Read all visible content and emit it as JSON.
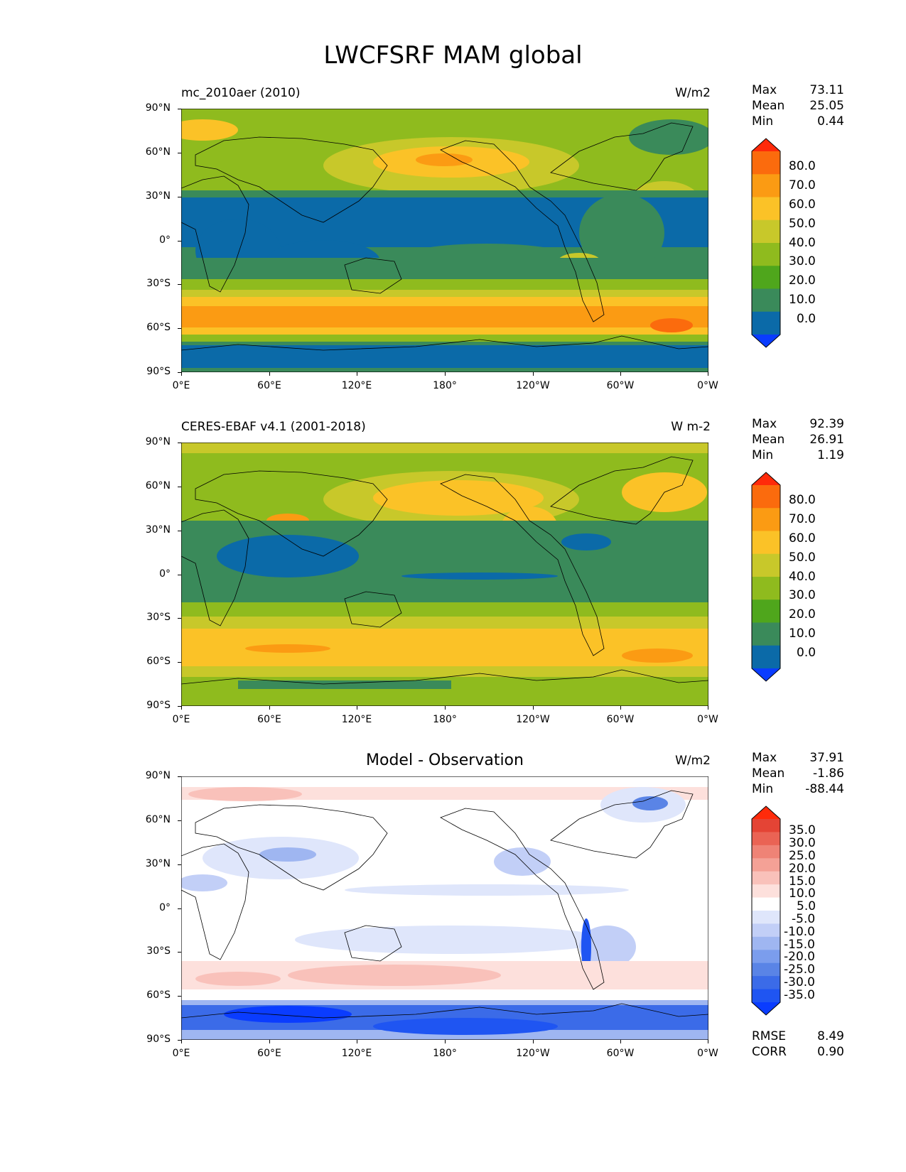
{
  "figure": {
    "title": "LWCFSRF MAM global"
  },
  "axes": {
    "lat_ticks": [
      "90°N",
      "60°N",
      "30°N",
      "0°",
      "30°S",
      "60°S",
      "90°S"
    ],
    "lon_ticks": [
      "0°E",
      "60°E",
      "120°E",
      "180°",
      "120°W",
      "60°W",
      "0°W"
    ]
  },
  "colors": {
    "sequential": [
      "#0a3cff",
      "#0b6aa8",
      "#3a8a5a",
      "#4fa61c",
      "#8fbb1e",
      "#c8c82a",
      "#fbc227",
      "#fb9b13",
      "#fb6b0d",
      "#ff2a0a"
    ],
    "diverging": [
      "#0a3cff",
      "#1f55f2",
      "#3b6be8",
      "#5a84e6",
      "#7b9ded",
      "#9fb6f1",
      "#c2cff7",
      "#dfe6fb",
      "#ffffff",
      "#fde0dc",
      "#f9c1ba",
      "#f4a196",
      "#ef8376",
      "#ea6354",
      "#e44435",
      "#ff2a0a"
    ]
  },
  "panels": [
    {
      "left_title": "mc_2010aer (2010)",
      "units": "W/m2",
      "stats": {
        "max_label": "Max",
        "max": "73.11",
        "mean_label": "Mean",
        "mean": "25.05",
        "min_label": "Min",
        "min": "0.44"
      },
      "colorbar": {
        "levels": [
          "80.0",
          "70.0",
          "60.0",
          "50.0",
          "40.0",
          "30.0",
          "20.0",
          "10.0",
          "0.0"
        ]
      }
    },
    {
      "left_title": "CERES-EBAF v4.1 (2001-2018)",
      "units": "W m-2",
      "stats": {
        "max_label": "Max",
        "max": "92.39",
        "mean_label": "Mean",
        "mean": "26.91",
        "min_label": "Min",
        "min": "1.19"
      },
      "colorbar": {
        "levels": [
          "80.0",
          "70.0",
          "60.0",
          "50.0",
          "40.0",
          "30.0",
          "20.0",
          "10.0",
          "0.0"
        ]
      }
    },
    {
      "center_title": "Model - Observation",
      "units": "W/m2",
      "stats": {
        "max_label": "Max",
        "max": "37.91",
        "mean_label": "Mean",
        "mean": "-1.86",
        "min_label": "Min",
        "min": "-88.44"
      },
      "colorbar": {
        "levels": [
          "35.0",
          "30.0",
          "25.0",
          "20.0",
          "15.0",
          "10.0",
          "5.0",
          "-5.0",
          "-10.0",
          "-15.0",
          "-20.0",
          "-25.0",
          "-30.0",
          "-35.0"
        ]
      },
      "metrics": {
        "rmse_label": "RMSE",
        "rmse": "8.49",
        "corr_label": "CORR",
        "corr": "0.90"
      }
    }
  ]
}
